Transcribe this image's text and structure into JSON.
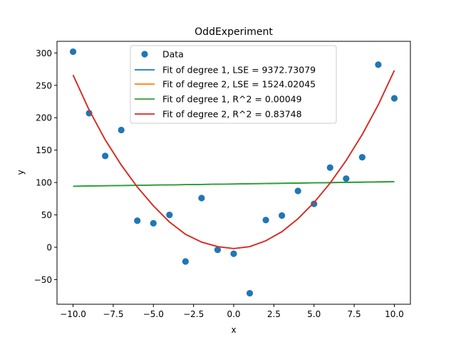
{
  "chart_data": {
    "type": "scatter",
    "title": "OddExperiment",
    "xlabel": "x",
    "ylabel": "y",
    "xlim": [
      -11,
      11
    ],
    "ylim": [
      -88,
      318
    ],
    "xticks": [
      -10.0,
      -7.5,
      -5.0,
      -2.5,
      0.0,
      2.5,
      5.0,
      7.5,
      10.0
    ],
    "xtick_labels": [
      "−10.0",
      "−7.5",
      "−5.0",
      "−2.5",
      "0.0",
      "2.5",
      "5.0",
      "7.5",
      "10.0"
    ],
    "yticks": [
      -50,
      0,
      50,
      100,
      150,
      200,
      250,
      300
    ],
    "ytick_labels": [
      "−50",
      "0",
      "50",
      "100",
      "150",
      "200",
      "250",
      "300"
    ],
    "grid": false,
    "legend_position": "top-center",
    "scatter": {
      "name": "Data",
      "color": "#1f77b4",
      "x": [
        -10,
        -9,
        -8,
        -7,
        -6,
        -5,
        -4,
        -3,
        -2,
        -1,
        0,
        1,
        2,
        3,
        4,
        5,
        6,
        7,
        8,
        9,
        10
      ],
      "y": [
        302,
        207,
        141,
        181,
        41,
        37,
        50,
        -22,
        76,
        -4,
        -10,
        -71,
        42,
        49,
        87,
        67,
        123,
        106,
        139,
        282,
        230
      ]
    },
    "series": [
      {
        "name": "Fit of degree 1, LSE = 9372.73079",
        "color": "#1f77b4",
        "x": [
          -10,
          -9,
          -8,
          -7,
          -6,
          -5,
          -4,
          -3,
          -2,
          -1,
          0,
          1,
          2,
          3,
          4,
          5,
          6,
          7,
          8,
          9,
          10
        ],
        "y": [
          94.2,
          94.6,
          94.9,
          95.3,
          95.6,
          96.0,
          96.3,
          96.7,
          97.0,
          97.4,
          97.7,
          98.1,
          98.4,
          98.8,
          99.1,
          99.5,
          99.8,
          100.2,
          100.5,
          100.9,
          101.2
        ]
      },
      {
        "name": "Fit of degree 2, LSE = 1524.02045",
        "color": "#ff7f0e",
        "x": [
          -10,
          -9,
          -8,
          -7,
          -6,
          -5,
          -4,
          -3,
          -2,
          -1,
          0,
          1,
          2,
          3,
          4,
          5,
          6,
          7,
          8,
          9,
          10
        ],
        "y": [
          266,
          212,
          166,
          127,
          93,
          64,
          39,
          20,
          8,
          1,
          -2,
          1,
          10,
          24,
          44,
          69,
          99,
          134,
          174,
          220,
          273
        ]
      },
      {
        "name": "Fit of degree 1, R^2 = 0.00049",
        "color": "#2ca02c",
        "x": [
          -10,
          -9,
          -8,
          -7,
          -6,
          -5,
          -4,
          -3,
          -2,
          -1,
          0,
          1,
          2,
          3,
          4,
          5,
          6,
          7,
          8,
          9,
          10
        ],
        "y": [
          94.2,
          94.6,
          94.9,
          95.3,
          95.6,
          96.0,
          96.3,
          96.7,
          97.0,
          97.4,
          97.7,
          98.1,
          98.4,
          98.8,
          99.1,
          99.5,
          99.8,
          100.2,
          100.5,
          100.9,
          101.2
        ]
      },
      {
        "name": "Fit of degree 2, R^2 = 0.83748",
        "color": "#d62728",
        "x": [
          -10,
          -9,
          -8,
          -7,
          -6,
          -5,
          -4,
          -3,
          -2,
          -1,
          0,
          1,
          2,
          3,
          4,
          5,
          6,
          7,
          8,
          9,
          10
        ],
        "y": [
          266,
          212,
          166,
          127,
          93,
          64,
          39,
          20,
          8,
          1,
          -2,
          1,
          10,
          24,
          44,
          69,
          99,
          134,
          174,
          220,
          273
        ]
      }
    ]
  }
}
